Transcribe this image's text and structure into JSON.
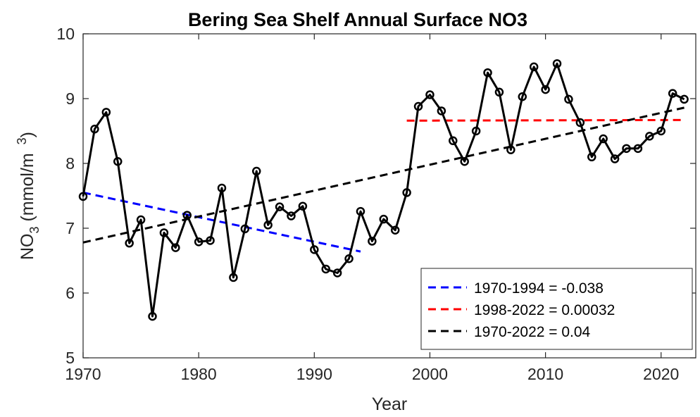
{
  "chart_data": {
    "type": "line",
    "title": "Bering Sea Shelf Annual Surface NO3",
    "xlabel": "Year",
    "ylabel": {
      "base": "NO",
      "sub": "3",
      "rest": " (mmol/m",
      "sup": "3",
      "close": ")"
    },
    "xlim": [
      1970,
      2023
    ],
    "ylim": [
      5,
      10
    ],
    "xticks": [
      1970,
      1980,
      1990,
      2000,
      2010,
      2020
    ],
    "yticks": [
      5,
      6,
      7,
      8,
      9,
      10
    ],
    "grid": false,
    "legend_position": "bottom-right",
    "series": [
      {
        "type": "line-markers",
        "color": "#000000",
        "x": [
          1970,
          1971,
          1972,
          1973,
          1974,
          1975,
          1976,
          1977,
          1978,
          1979,
          1980,
          1981,
          1982,
          1983,
          1984,
          1985,
          1986,
          1987,
          1988,
          1989,
          1990,
          1991,
          1992,
          1993,
          1994,
          1995,
          1996,
          1997,
          1998,
          1999,
          2000,
          2001,
          2002,
          2003,
          2004,
          2005,
          2006,
          2007,
          2008,
          2009,
          2010,
          2011,
          2012,
          2013,
          2014,
          2015,
          2016,
          2017,
          2018,
          2019,
          2020,
          2021,
          2022
        ],
        "y": [
          7.49,
          8.53,
          8.79,
          8.03,
          6.77,
          7.13,
          5.64,
          6.93,
          6.7,
          7.2,
          6.79,
          6.81,
          7.62,
          6.24,
          6.99,
          7.88,
          7.05,
          7.33,
          7.19,
          7.34,
          6.67,
          6.37,
          6.31,
          6.53,
          7.26,
          6.8,
          7.14,
          6.97,
          7.55,
          8.88,
          9.06,
          8.81,
          8.35,
          8.03,
          8.5,
          9.4,
          9.1,
          8.21,
          9.03,
          9.49,
          9.14,
          9.54,
          8.99,
          8.63,
          8.1,
          8.38,
          8.07,
          8.23,
          8.23,
          8.42,
          8.5,
          9.08,
          8.99
        ]
      },
      {
        "type": "trend",
        "name": "1970-1994 = -0.038",
        "color": "#0000ff",
        "x": [
          1970,
          1994
        ],
        "y": [
          7.55,
          6.64
        ]
      },
      {
        "type": "trend",
        "name": "1998-2022 = 0.00032",
        "color": "#ff0000",
        "x": [
          1998,
          2022
        ],
        "y": [
          8.66,
          8.67
        ]
      },
      {
        "type": "trend",
        "name": "1970-2022 = 0.04",
        "color": "#000000",
        "x": [
          1970,
          2022
        ],
        "y": [
          6.78,
          8.86
        ]
      }
    ]
  }
}
